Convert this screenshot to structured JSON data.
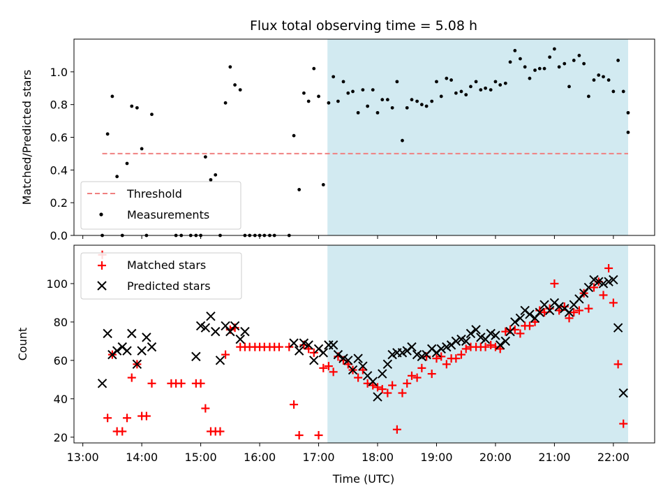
{
  "chart_data": [
    {
      "type": "scatter",
      "title": "Flux total observing time = 5.08 h",
      "ylabel": "Matched/Predicted stars",
      "xlabel": "",
      "xlim": [
        12.85,
        22.7
      ],
      "ylim": [
        0,
        1.2
      ],
      "yticks": [
        0.0,
        0.2,
        0.4,
        0.6,
        0.8,
        1.0
      ],
      "yticklabels": [
        "0.0",
        "0.2",
        "0.4",
        "0.6",
        "0.8",
        "1.0"
      ],
      "shaded_region": {
        "x0": 17.15,
        "x1": 22.25,
        "color": "#add8e6"
      },
      "legend_position": "lower-left",
      "series": [
        {
          "name": "Threshold",
          "kind": "dashed-line",
          "color": "#f08080",
          "y": 0.5,
          "x": [
            13.33,
            22.25
          ]
        },
        {
          "name": "Measurements",
          "kind": "points",
          "color": "#000000",
          "x": [
            13.33,
            13.42,
            13.5,
            13.58,
            13.67,
            13.75,
            13.83,
            13.92,
            14.0,
            14.08,
            14.17,
            14.25,
            14.33,
            14.42,
            14.5,
            14.58,
            14.67,
            14.75,
            14.83,
            14.92,
            15.0,
            15.08,
            15.17,
            15.25,
            15.33,
            15.42,
            15.5,
            15.58,
            15.67,
            15.75,
            15.83,
            15.92,
            16.0,
            16.08,
            16.17,
            16.25,
            16.33,
            16.42,
            16.5,
            16.58,
            16.67,
            16.75,
            16.83,
            16.92,
            17.0,
            17.08,
            17.17,
            17.25,
            17.33,
            17.42,
            17.5,
            17.58,
            17.67,
            17.75,
            17.83,
            17.92,
            18.0,
            18.08,
            18.17,
            18.25,
            18.33,
            18.42,
            18.5,
            18.58,
            18.67,
            18.75,
            18.83,
            18.92,
            19.0,
            19.08,
            19.17,
            19.25,
            19.33,
            19.42,
            19.5,
            19.58,
            19.67,
            19.75,
            19.83,
            19.92,
            20.0,
            20.08,
            20.17,
            20.25,
            20.33,
            20.42,
            20.5,
            20.58,
            20.67,
            20.75,
            20.83,
            20.92,
            21.0,
            21.08,
            21.17,
            21.25,
            21.33,
            21.42,
            21.5,
            21.58,
            21.67,
            21.75,
            21.83,
            21.92,
            22.0,
            22.08,
            22.17,
            22.25
          ],
          "y": [
            0.0,
            0.62,
            0.85,
            0.36,
            0.0,
            0.44,
            0.79,
            0.78,
            0.53,
            0.0,
            0.74,
            null,
            null,
            null,
            null,
            0.0,
            0.0,
            null,
            0.0,
            0.0,
            0.0,
            0.48,
            0.34,
            0.37,
            0.0,
            0.81,
            1.03,
            0.92,
            0.89,
            0.0,
            0.0,
            0.0,
            0.0,
            0.0,
            0.0,
            0.0,
            null,
            null,
            0.0,
            0.61,
            0.28,
            0.87,
            0.82,
            1.02,
            0.85,
            0.31,
            0.81,
            0.97,
            0.82,
            0.94,
            0.87,
            0.88,
            0.75,
            0.89,
            0.79,
            0.89,
            0.75,
            0.83,
            0.83,
            0.78,
            0.94,
            0.58,
            0.78,
            0.83,
            0.82,
            0.8,
            0.79,
            0.82,
            0.94,
            0.85,
            0.96,
            0.95,
            0.87,
            0.88,
            0.86,
            0.91,
            0.94,
            0.89,
            0.9,
            0.89,
            0.94,
            0.92,
            0.93,
            1.06,
            1.13,
            1.08,
            1.03,
            0.96,
            1.01,
            1.02,
            1.02,
            1.09,
            1.14,
            1.03,
            1.05,
            0.91,
            1.07,
            1.1,
            1.05,
            0.85,
            0.95,
            0.98,
            0.97,
            0.95,
            0.88,
            1.07,
            0.88,
            0.75
          ]
        },
        {
          "name": "",
          "kind": "points",
          "color": "#000000",
          "x": [
            22.25
          ],
          "y": [
            0.63
          ]
        }
      ]
    },
    {
      "type": "scatter",
      "title": "",
      "ylabel": "Count",
      "xlabel": "Time (UTC)",
      "xlim": [
        12.85,
        22.7
      ],
      "ylim": [
        17,
        120
      ],
      "yticks": [
        20,
        40,
        60,
        80,
        100
      ],
      "yticklabels": [
        "20",
        "40",
        "60",
        "80",
        "100"
      ],
      "xticks": [
        13,
        14,
        15,
        16,
        17,
        18,
        19,
        20,
        21,
        22
      ],
      "xticklabels": [
        "13:00",
        "14:00",
        "15:00",
        "16:00",
        "17:00",
        "18:00",
        "19:00",
        "20:00",
        "21:00",
        "22:00"
      ],
      "shaded_region": {
        "x0": 17.15,
        "x1": 22.25,
        "color": "#add8e6"
      },
      "legend_position": "upper-left",
      "series": [
        {
          "name": "Matched stars",
          "marker": "plus",
          "color": "#ff0000",
          "x": [
            13.33,
            13.42,
            13.5,
            13.58,
            13.67,
            13.75,
            13.83,
            13.92,
            14.0,
            14.08,
            14.17,
            14.5,
            14.58,
            14.67,
            14.92,
            15.0,
            15.08,
            15.17,
            15.25,
            15.33,
            15.42,
            15.5,
            15.58,
            15.67,
            15.75,
            15.83,
            15.92,
            16.0,
            16.08,
            16.17,
            16.25,
            16.33,
            16.5,
            16.58,
            16.67,
            16.75,
            16.83,
            16.92,
            17.0,
            17.08,
            17.17,
            17.25,
            17.33,
            17.42,
            17.5,
            17.58,
            17.67,
            17.75,
            17.83,
            17.92,
            18.0,
            18.08,
            18.17,
            18.25,
            18.33,
            18.42,
            18.5,
            18.58,
            18.67,
            18.75,
            18.83,
            18.92,
            19.0,
            19.08,
            19.17,
            19.25,
            19.33,
            19.42,
            19.5,
            19.58,
            19.67,
            19.75,
            19.83,
            19.92,
            20.0,
            20.08,
            20.17,
            20.25,
            20.33,
            20.42,
            20.5,
            20.58,
            20.67,
            20.75,
            20.83,
            20.92,
            21.0,
            21.08,
            21.17,
            21.25,
            21.33,
            21.42,
            21.5,
            21.58,
            21.67,
            21.75,
            21.83,
            21.92,
            22.0,
            22.08,
            22.17,
            22.25
          ],
          "y": [
            115,
            30,
            63,
            23,
            23,
            30,
            51,
            58,
            31,
            31,
            48,
            48,
            48,
            48,
            48,
            48,
            35,
            23,
            23,
            23,
            63,
            76,
            77,
            67,
            67,
            67,
            67,
            67,
            67,
            67,
            67,
            67,
            67,
            37,
            21,
            68,
            66,
            64,
            21,
            56,
            57,
            54,
            62,
            60,
            58,
            55,
            51,
            55,
            48,
            47,
            46,
            45,
            43,
            47,
            24,
            43,
            48,
            52,
            51,
            56,
            62,
            53,
            61,
            62,
            58,
            61,
            61,
            63,
            66,
            67,
            67,
            67,
            67,
            68,
            67,
            66,
            75,
            76,
            76,
            74,
            78,
            78,
            80,
            86,
            85,
            87,
            100,
            86,
            88,
            82,
            85,
            86,
            95,
            87,
            98,
            101,
            94,
            108,
            90,
            58,
            27,
            null
          ]
        },
        {
          "name": "Predicted stars",
          "marker": "x",
          "color": "#000000",
          "x": [
            13.33,
            13.42,
            13.5,
            13.58,
            13.67,
            13.75,
            13.83,
            13.92,
            14.0,
            14.08,
            14.17,
            14.92,
            15.0,
            15.08,
            15.17,
            15.25,
            15.33,
            15.42,
            15.5,
            15.58,
            15.67,
            15.75,
            16.58,
            16.67,
            16.75,
            16.83,
            16.92,
            17.0,
            17.08,
            17.17,
            17.25,
            17.33,
            17.42,
            17.5,
            17.58,
            17.67,
            17.75,
            17.83,
            17.92,
            18.0,
            18.08,
            18.17,
            18.25,
            18.33,
            18.42,
            18.5,
            18.58,
            18.67,
            18.75,
            18.83,
            18.92,
            19.0,
            19.08,
            19.17,
            19.25,
            19.33,
            19.42,
            19.5,
            19.58,
            19.67,
            19.75,
            19.83,
            19.92,
            20.0,
            20.08,
            20.17,
            20.25,
            20.33,
            20.42,
            20.5,
            20.58,
            20.67,
            20.75,
            20.83,
            20.92,
            21.0,
            21.08,
            21.17,
            21.25,
            21.33,
            21.42,
            21.5,
            21.58,
            21.67,
            21.75,
            21.83,
            21.92,
            22.0,
            22.08,
            22.17,
            22.25
          ],
          "y": [
            48,
            74,
            63,
            65,
            67,
            65,
            74,
            58,
            65,
            72,
            67,
            62,
            78,
            77,
            83,
            75,
            60,
            78,
            75,
            78,
            71,
            75,
            69,
            65,
            69,
            68,
            60,
            66,
            64,
            68,
            68,
            63,
            61,
            60,
            55,
            61,
            57,
            52,
            49,
            41,
            53,
            58,
            63,
            64,
            64,
            65,
            67,
            63,
            62,
            63,
            66,
            64,
            66,
            67,
            68,
            70,
            71,
            70,
            74,
            76,
            72,
            71,
            74,
            73,
            68,
            70,
            75,
            80,
            82,
            86,
            84,
            82,
            85,
            89,
            86,
            90,
            88,
            87,
            85,
            89,
            92,
            95,
            98,
            102,
            101,
            100,
            101,
            102,
            77,
            43,
            null
          ]
        }
      ]
    }
  ]
}
